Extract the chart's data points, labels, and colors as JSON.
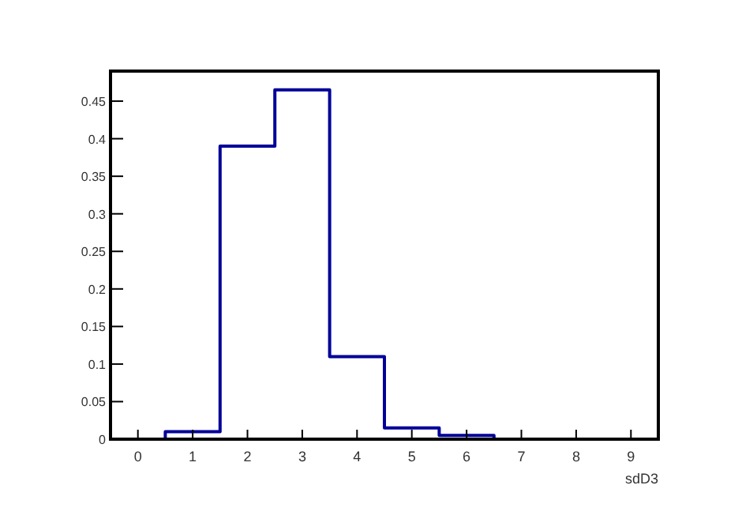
{
  "chart_data": {
    "type": "histogram",
    "xlabel": "sdD3",
    "bins": [
      -0.5,
      0.5,
      1.5,
      2.5,
      3.5,
      4.5,
      5.5,
      6.5,
      7.5,
      8.5,
      9.5
    ],
    "values": [
      0,
      0.01,
      0.39,
      0.465,
      0.11,
      0.015,
      0.005,
      0,
      0,
      0
    ],
    "color": "#000099",
    "xlim": [
      -0.5,
      9.5
    ],
    "xticks": [
      0,
      1,
      2,
      3,
      4,
      5,
      6,
      7,
      8,
      9
    ],
    "ylim": [
      0,
      0.49
    ],
    "yticks": [
      0,
      0.05,
      0.1,
      0.15,
      0.2,
      0.25,
      0.3,
      0.35,
      0.4,
      0.45
    ],
    "grid": false
  }
}
